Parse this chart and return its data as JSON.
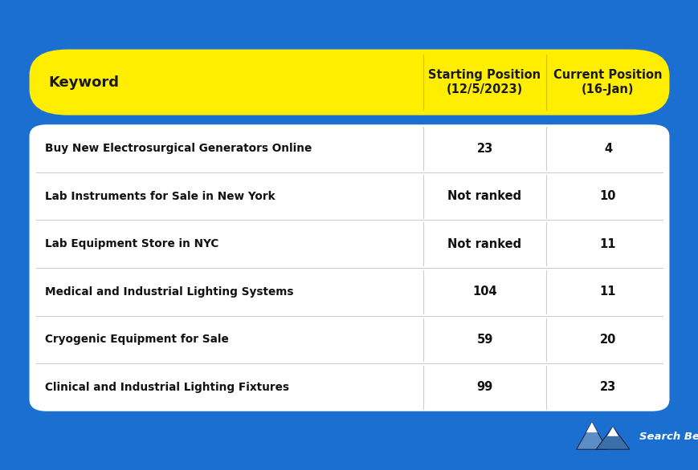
{
  "background_color": "#1B6FD1",
  "table_bg_color": "#FFFFFF",
  "header_bg_color": "#FFEE00",
  "header_text_color": "#1a1a1a",
  "row_text_color": "#111111",
  "divider_color": "#CCCCCC",
  "header_col1": "Keyword",
  "header_col2": "Starting Position\n(12/5/2023)",
  "header_col3": "Current Position\n(16-Jan)",
  "rows": [
    [
      "Buy New Electrosurgical Generators Online",
      "23",
      "4"
    ],
    [
      "Lab Instruments for Sale in New York",
      "Not ranked",
      "10"
    ],
    [
      "Lab Equipment Store in NYC",
      "Not ranked",
      "11"
    ],
    [
      "Medical and Industrial Lighting Systems",
      "104",
      "11"
    ],
    [
      "Cryogenic Equipment for Sale",
      "59",
      "20"
    ],
    [
      "Clinical and Industrial Lighting Fixtures",
      "99",
      "23"
    ]
  ],
  "fig_width": 8.7,
  "fig_height": 5.86,
  "dpi": 100,
  "col_splits": [
    0.0,
    0.615,
    0.808,
    1.0
  ]
}
